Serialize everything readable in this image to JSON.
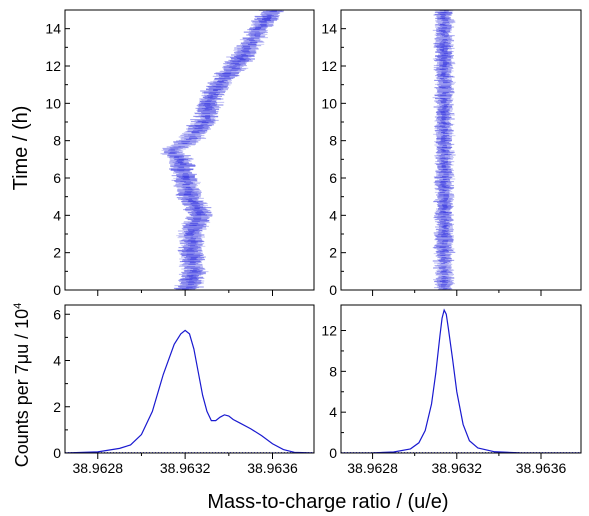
{
  "figure": {
    "xlabel": "Mass-to-charge ratio / (u/e)",
    "ylabel_top": "Time / (h)",
    "ylabel_bottom": "Counts per 7μu / 10",
    "ylabel_bottom_sup": "4",
    "trace_color": "#1a1ad0",
    "heat_color": "#3a3ae0"
  },
  "chart_data": [
    {
      "id": "top-left",
      "type": "heatmap",
      "xlim": [
        38.96265,
        38.96379
      ],
      "ylim": [
        0,
        15
      ],
      "yticks": [
        0,
        2,
        4,
        6,
        8,
        10,
        12,
        14
      ],
      "ytick_labels": [
        "0",
        "2",
        "4",
        "6",
        "8",
        "10",
        "12",
        "14"
      ],
      "xticks": [
        38.9628,
        38.9632,
        38.9636
      ],
      "center_track": {
        "time_h": [
          0,
          1,
          2,
          3,
          4,
          5,
          6,
          7,
          7.5,
          8,
          9,
          10,
          11,
          12,
          13,
          14,
          15
        ],
        "mz": [
          38.96321,
          38.96324,
          38.96323,
          38.96323,
          38.96327,
          38.96322,
          38.9632,
          38.96318,
          38.96314,
          38.96322,
          38.96329,
          38.96331,
          38.96335,
          38.96343,
          38.96349,
          38.96354,
          38.9636
        ]
      },
      "track_width_mz": 4.5e-05
    },
    {
      "id": "top-right",
      "type": "heatmap",
      "xlim": [
        38.96265,
        38.96379
      ],
      "ylim": [
        0,
        15
      ],
      "yticks": [
        0,
        2,
        4,
        6,
        8,
        10,
        12,
        14
      ],
      "ytick_labels": [
        "0",
        "2",
        "4",
        "6",
        "8",
        "10",
        "12",
        "14"
      ],
      "xticks": [
        38.9628,
        38.9632,
        38.9636
      ],
      "center_track": {
        "time_h": [
          0,
          15
        ],
        "mz": [
          38.96314,
          38.96314
        ]
      },
      "track_width_mz": 3.5e-05
    },
    {
      "id": "bottom-left",
      "type": "line",
      "xlim": [
        38.96265,
        38.96379
      ],
      "ylim": [
        0,
        6.4
      ],
      "yticks": [
        0,
        2,
        4,
        6
      ],
      "ytick_labels": [
        "0",
        "2",
        "4",
        "6"
      ],
      "xticks": [
        38.9628,
        38.9632,
        38.9636
      ],
      "xtick_labels": [
        "38.9628",
        "38.9632",
        "38.9636"
      ],
      "series": [
        {
          "x": [
            38.96265,
            38.9628,
            38.9629,
            38.96295,
            38.963,
            38.96305,
            38.9631,
            38.96315,
            38.96318,
            38.9632,
            38.96322,
            38.96324,
            38.96326,
            38.96328,
            38.9633,
            38.96332,
            38.96334,
            38.96336,
            38.96338,
            38.9634,
            38.96342,
            38.96345,
            38.9635,
            38.96355,
            38.9636,
            38.96365,
            38.9637,
            38.96379
          ],
          "y": [
            0,
            0.05,
            0.2,
            0.35,
            0.8,
            1.8,
            3.4,
            4.7,
            5.15,
            5.3,
            5.15,
            4.5,
            3.5,
            2.5,
            1.8,
            1.4,
            1.4,
            1.55,
            1.65,
            1.6,
            1.45,
            1.3,
            1.05,
            0.75,
            0.4,
            0.15,
            0.03,
            0
          ]
        }
      ]
    },
    {
      "id": "bottom-right",
      "type": "line",
      "xlim": [
        38.96265,
        38.96379
      ],
      "ylim": [
        0,
        14.5
      ],
      "yticks": [
        0,
        4,
        8,
        12
      ],
      "ytick_labels": [
        "0",
        "4",
        "8",
        "12"
      ],
      "xticks": [
        38.9628,
        38.9632,
        38.9636
      ],
      "xtick_labels": [
        "38.9628",
        "38.9632",
        "38.9636"
      ],
      "series": [
        {
          "x": [
            38.96265,
            38.9628,
            38.9629,
            38.96298,
            38.96302,
            38.96305,
            38.96308,
            38.9631,
            38.96312,
            38.96313,
            38.96314,
            38.96315,
            38.96316,
            38.96318,
            38.9632,
            38.96323,
            38.96326,
            38.9633,
            38.96338,
            38.9635,
            38.96379
          ],
          "y": [
            0,
            0.02,
            0.1,
            0.4,
            1.0,
            2.2,
            4.8,
            7.8,
            11.5,
            13.2,
            14.0,
            13.6,
            12.2,
            9.2,
            6.0,
            2.8,
            1.2,
            0.5,
            0.12,
            0.02,
            0
          ]
        }
      ]
    }
  ]
}
